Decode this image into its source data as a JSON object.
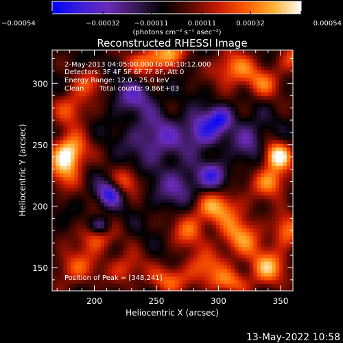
{
  "chart_data": {
    "type": "heatmap",
    "title": "Reconstructed RHESSI Image",
    "xlabel": "Heliocentric X (arcsec)",
    "ylabel": "Heliocentric Y (arcsec)",
    "xlim": [
      166,
      360
    ],
    "ylim": [
      131,
      327
    ],
    "x_ticks": [
      200,
      250,
      300,
      350
    ],
    "y_ticks": [
      150,
      200,
      250,
      300
    ],
    "colorbar": {
      "unit_label": "(photons cm⁻² s⁻¹ asec⁻²)",
      "range": [
        -0.00054,
        0.00054
      ],
      "tick_values": [
        -0.00054,
        -0.00032,
        -0.00011,
        0.00011,
        0.00032,
        0.00054
      ],
      "tick_labels": [
        "−0.00054",
        "−0.00032",
        "−0.00011",
        "0.00011",
        "0.00032",
        "0.00054"
      ],
      "colors": [
        "#0000ff",
        "#3a1fd8",
        "#6a2ab8",
        "#3a1a5a",
        "#000000",
        "#5a0a00",
        "#c81a00",
        "#ff5a00",
        "#ffb030",
        "#ffffff"
      ]
    },
    "annotations": [
      "2-May-2013 04:05:00.000 to 04:10:12.000",
      "Detectors: 3F 4F 5F 6F 7F 8F, Att 0",
      "Energy Range: 12.0 - 25.0 keV",
      "Clean",
      "Total counts: 9.86E+03"
    ],
    "peak_label": "Position of Peak = [348,241]",
    "peak": [
      348,
      241
    ],
    "grid": false,
    "legend": "none",
    "sources": [
      {
        "x": 348,
        "y": 241,
        "amp": 1.0,
        "sx": 8,
        "sy": 8
      },
      {
        "x": 342,
        "y": 220,
        "amp": 0.75,
        "sx": 10,
        "sy": 9
      },
      {
        "x": 180,
        "y": 245,
        "amp": 0.85,
        "sx": 10,
        "sy": 10
      },
      {
        "x": 176,
        "y": 230,
        "amp": 0.6,
        "sx": 9,
        "sy": 12
      },
      {
        "x": 245,
        "y": 318,
        "amp": 0.75,
        "sx": 12,
        "sy": 8
      },
      {
        "x": 262,
        "y": 326,
        "amp": 0.6,
        "sx": 8,
        "sy": 6
      },
      {
        "x": 312,
        "y": 312,
        "amp": 0.7,
        "sx": 12,
        "sy": 10
      },
      {
        "x": 336,
        "y": 300,
        "amp": 0.55,
        "sx": 10,
        "sy": 9
      },
      {
        "x": 182,
        "y": 280,
        "amp": 0.55,
        "sx": 10,
        "sy": 10
      },
      {
        "x": 196,
        "y": 300,
        "amp": 0.45,
        "sx": 9,
        "sy": 8
      },
      {
        "x": 298,
        "y": 200,
        "amp": 0.75,
        "sx": 14,
        "sy": 10
      },
      {
        "x": 318,
        "y": 175,
        "amp": 0.7,
        "sx": 12,
        "sy": 12
      },
      {
        "x": 340,
        "y": 150,
        "amp": 0.8,
        "sx": 10,
        "sy": 10
      },
      {
        "x": 355,
        "y": 180,
        "amp": 0.65,
        "sx": 8,
        "sy": 10
      },
      {
        "x": 276,
        "y": 180,
        "amp": 0.55,
        "sx": 10,
        "sy": 10
      },
      {
        "x": 290,
        "y": 150,
        "amp": 0.55,
        "sx": 12,
        "sy": 10
      },
      {
        "x": 226,
        "y": 220,
        "amp": 0.5,
        "sx": 8,
        "sy": 8
      },
      {
        "x": 202,
        "y": 175,
        "amp": 0.6,
        "sx": 10,
        "sy": 9
      },
      {
        "x": 185,
        "y": 150,
        "amp": 0.55,
        "sx": 12,
        "sy": 10
      },
      {
        "x": 226,
        "y": 150,
        "amp": 0.5,
        "sx": 10,
        "sy": 9
      },
      {
        "x": 260,
        "y": 140,
        "amp": 0.55,
        "sx": 12,
        "sy": 8
      },
      {
        "x": 310,
        "y": 138,
        "amp": 0.5,
        "sx": 12,
        "sy": 7
      },
      {
        "x": 360,
        "y": 320,
        "amp": 0.55,
        "sx": 8,
        "sy": 8
      },
      {
        "x": 288,
        "y": 262,
        "amp": -0.7,
        "sx": 10,
        "sy": 10
      },
      {
        "x": 302,
        "y": 272,
        "amp": -0.6,
        "sx": 7,
        "sy": 7
      },
      {
        "x": 250,
        "y": 255,
        "amp": -0.5,
        "sx": 16,
        "sy": 14
      },
      {
        "x": 212,
        "y": 210,
        "amp": -0.75,
        "sx": 7,
        "sy": 7
      },
      {
        "x": 205,
        "y": 184,
        "amp": -0.6,
        "sx": 6,
        "sy": 5
      },
      {
        "x": 296,
        "y": 225,
        "amp": -0.6,
        "sx": 8,
        "sy": 8
      },
      {
        "x": 270,
        "y": 215,
        "amp": -0.45,
        "sx": 14,
        "sy": 12
      },
      {
        "x": 232,
        "y": 290,
        "amp": -0.45,
        "sx": 12,
        "sy": 10
      },
      {
        "x": 325,
        "y": 255,
        "amp": -0.4,
        "sx": 10,
        "sy": 12
      }
    ]
  },
  "footer": {
    "timestamp": "13-May-2022 10:58"
  }
}
